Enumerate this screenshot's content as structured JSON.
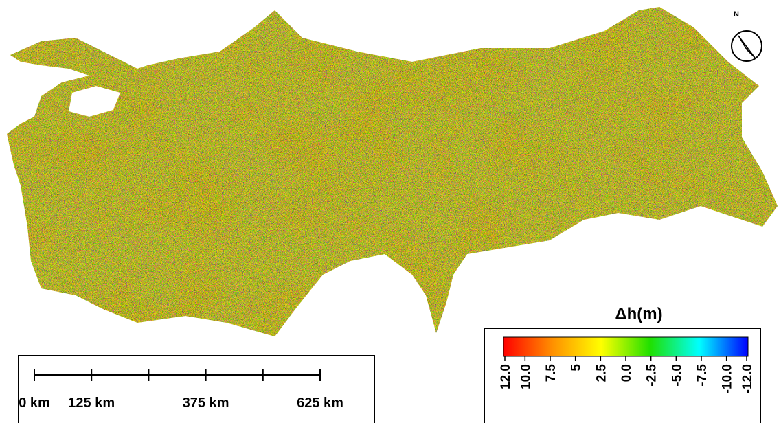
{
  "north_arrow": {
    "label": "N"
  },
  "scale_bar": {
    "ticks": [
      0,
      125,
      250,
      375,
      500,
      625
    ],
    "labels": [
      {
        "value": 0,
        "label": "0 km"
      },
      {
        "value": 125,
        "label": "125 km"
      },
      {
        "value": 375,
        "label": "375 km"
      },
      {
        "value": 625,
        "label": "625 km"
      }
    ]
  },
  "legend": {
    "title": "Δh(m)",
    "range": [
      12,
      -12
    ],
    "colors": [
      "#ff0000",
      "#ff9000",
      "#ffff00",
      "#20e000",
      "#00ffff",
      "#0000ff"
    ],
    "ticks": [
      {
        "value": 12,
        "label": "12.0"
      },
      {
        "value": 10,
        "label": "10.0"
      },
      7.5,
      5,
      2.5,
      {
        "value": 0,
        "label": "0.0"
      },
      -2.5,
      {
        "value": -5,
        "label": "-5.0"
      },
      -7.5,
      {
        "value": -10,
        "label": "-10.0"
      },
      {
        "value": -12,
        "label": "-12.0"
      }
    ]
  }
}
